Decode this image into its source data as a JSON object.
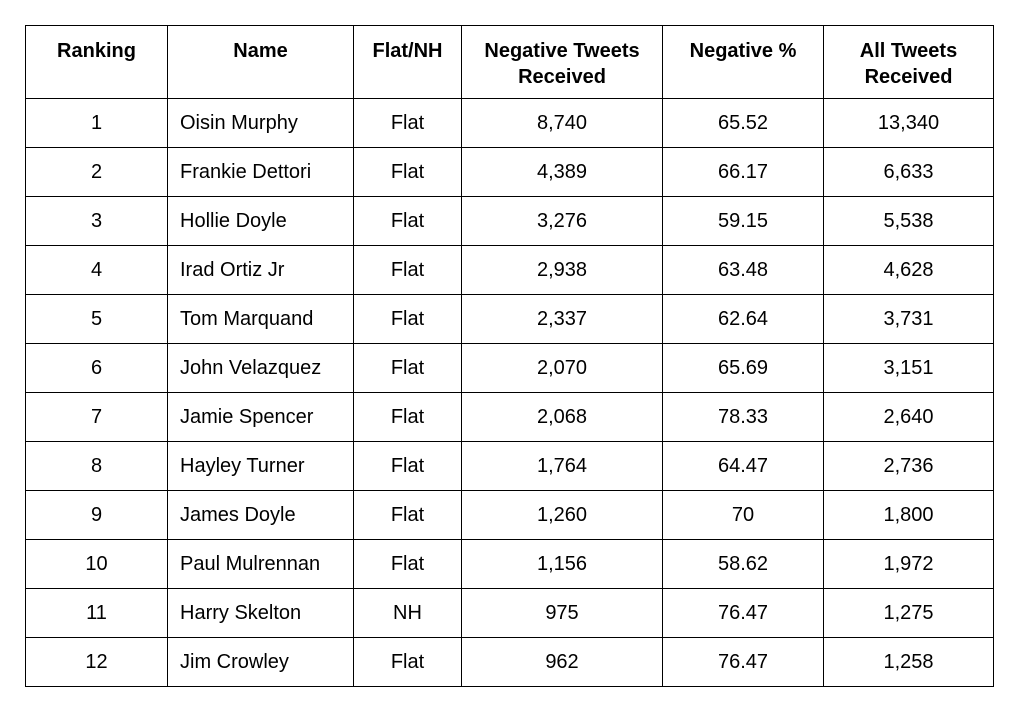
{
  "table": {
    "header": [
      "Ranking",
      "Name",
      "Flat/NH",
      "Negative Tweets Received",
      "Negative %",
      "All Tweets Received"
    ],
    "rows": [
      [
        "1",
        "Oisin Murphy",
        "Flat",
        "8,740",
        "65.52",
        "13,340"
      ],
      [
        "2",
        "Frankie Dettori",
        "Flat",
        "4,389",
        "66.17",
        "6,633"
      ],
      [
        "3",
        "Hollie Doyle",
        "Flat",
        "3,276",
        "59.15",
        "5,538"
      ],
      [
        "4",
        "Irad Ortiz Jr",
        "Flat",
        "2,938",
        "63.48",
        "4,628"
      ],
      [
        "5",
        "Tom Marquand",
        "Flat",
        "2,337",
        "62.64",
        "3,731"
      ],
      [
        "6",
        "John Velazquez",
        "Flat",
        "2,070",
        "65.69",
        "3,151"
      ],
      [
        "7",
        "Jamie Spencer",
        "Flat",
        "2,068",
        "78.33",
        "2,640"
      ],
      [
        "8",
        "Hayley Turner",
        "Flat",
        "1,764",
        "64.47",
        "2,736"
      ],
      [
        "9",
        "James Doyle",
        "Flat",
        "1,260",
        "70",
        "1,800"
      ],
      [
        "10",
        "Paul Mulrennan",
        "Flat",
        "1,156",
        "58.62",
        "1,972"
      ],
      [
        "11",
        "Harry Skelton",
        "NH",
        "975",
        "76.47",
        "1,275"
      ],
      [
        "12",
        "Jim Crowley",
        "Flat",
        "962",
        "76.47",
        "1,258"
      ]
    ]
  }
}
